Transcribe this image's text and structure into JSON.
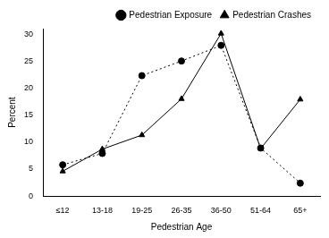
{
  "chart_data": {
    "type": "line",
    "x_label": "Pedestrian Age",
    "y_label": "Percent",
    "categories": [
      "≤12",
      "13-18",
      "19-25",
      "26-35",
      "36-50",
      "51-64",
      "65+"
    ],
    "series": [
      {
        "name": "Pedestrian Exposure",
        "color": "#000000",
        "marker": "circle",
        "line_style": "dotted",
        "values": [
          5.8,
          7.9,
          22.3,
          25.0,
          27.9,
          8.9,
          2.4
        ]
      },
      {
        "name": "Pedestrian Crashes",
        "color": "#000000",
        "marker": "triangle",
        "line_style": "solid",
        "values": [
          4.6,
          8.7,
          11.3,
          18.0,
          30.1,
          8.8,
          17.9
        ]
      }
    ],
    "ylim": [
      0,
      31
    ],
    "yticks": [
      0,
      5,
      10,
      15,
      20,
      25,
      30
    ],
    "grid": false,
    "legend": "upper right"
  }
}
